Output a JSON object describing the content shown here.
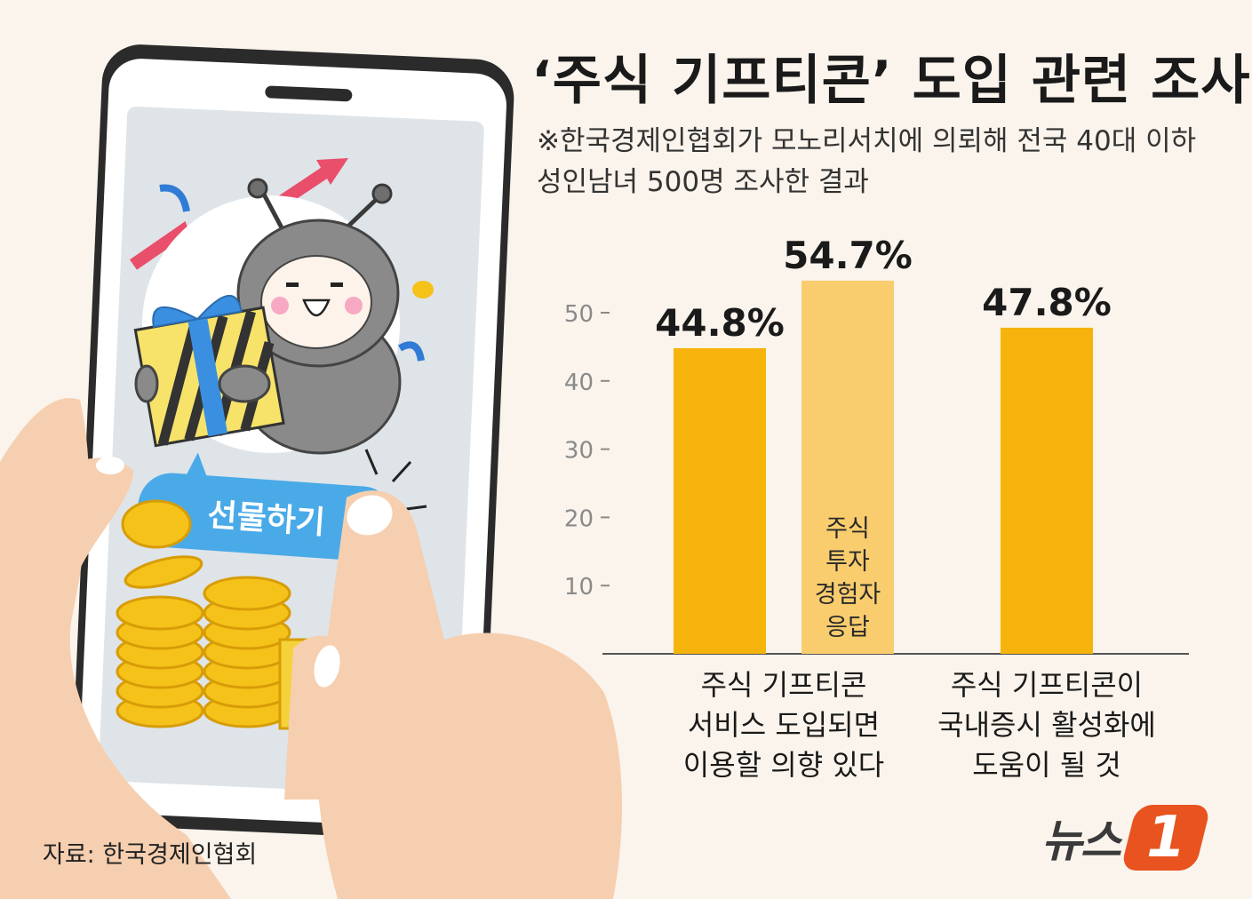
{
  "header": {
    "title": "‘주식 기프티콘’ 도입 관련 조사",
    "note_line1": "※한국경제인협회가 모노리서치에 의뢰해 전국 40대 이하",
    "note_line2": "성인남녀 500명 조사한 결과"
  },
  "illustration": {
    "button_label": "선물하기"
  },
  "chart_data": {
    "type": "bar",
    "ylim": [
      0,
      60
    ],
    "yticks": [
      10,
      20,
      30,
      40,
      50
    ],
    "bars": [
      {
        "value": 44.8,
        "label": "44.8%",
        "group": 0,
        "color": "#f6b30b"
      },
      {
        "value": 54.7,
        "label": "54.7%",
        "group": 0,
        "color": "#f9cd6e",
        "inner_label": [
          "주식",
          "투자",
          "경험자",
          "응답"
        ]
      },
      {
        "value": 47.8,
        "label": "47.8%",
        "group": 1,
        "color": "#f6b30b"
      }
    ],
    "categories": [
      [
        "주식 기프티콘",
        "서비스 도입되면",
        "이용할 의향 있다"
      ],
      [
        "주식 기프티콘이",
        "국내증시 활성화에",
        "도움이 될 것"
      ]
    ]
  },
  "footer": {
    "source": "자료: 한국경제인협회",
    "logo_text": "뉴스",
    "logo_mark": "1"
  },
  "colors": {
    "background": "#faf4ec",
    "bar": "#f6b30b",
    "bar_light": "#f9cd6e",
    "logo_accent": "#e8531f"
  }
}
